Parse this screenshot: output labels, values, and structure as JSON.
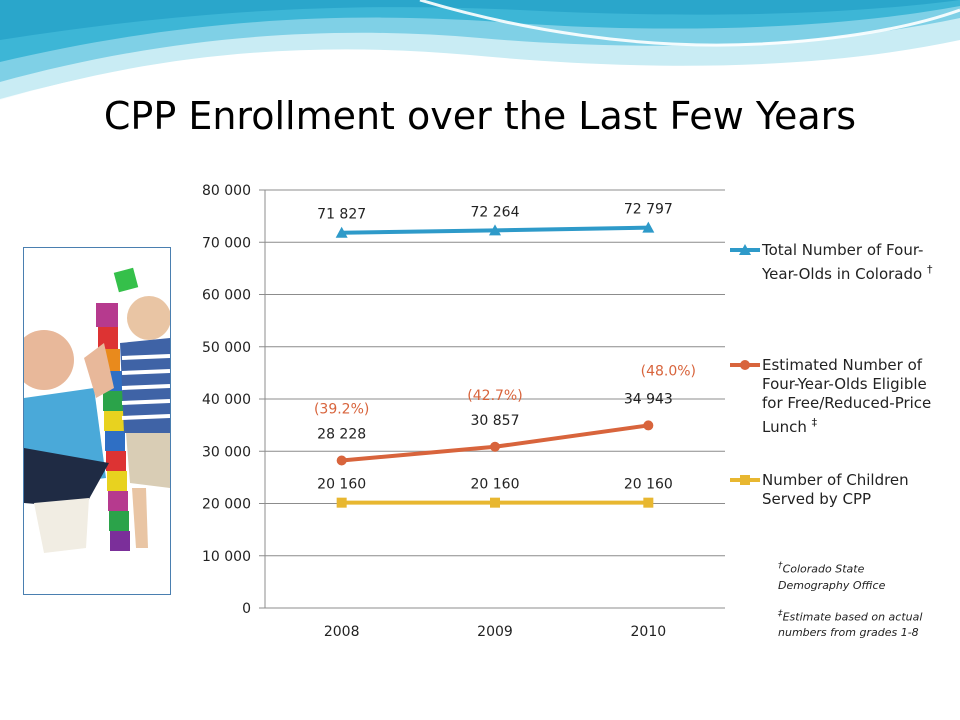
{
  "slide": {
    "title": "CPP Enrollment over the Last Few Years"
  },
  "colors": {
    "total": "#2e9ac9",
    "eligible": "#d8643c",
    "served": "#e8b730",
    "percent_label": "#d8643c",
    "wave_dark": "#3db6d6",
    "wave_light": "#c9ecf4"
  },
  "legend": [
    {
      "text": "Total Number of Four-Year-Olds in Colorado",
      "mark": "†",
      "series": "total"
    },
    {
      "text": "Estimated Number of Four-Year-Olds Eligible for Free/Reduced-Price Lunch",
      "mark": "‡",
      "series": "eligible"
    },
    {
      "text": "Number of Children Served by CPP",
      "mark": "",
      "series": "served"
    }
  ],
  "footnotes": [
    {
      "mark": "†",
      "text": "Colorado State Demography Office"
    },
    {
      "mark": "‡",
      "text": "Estimate based on actual numbers from grades 1-8"
    }
  ],
  "photo": {
    "description_icon": "children-stacking-blocks-photo"
  },
  "chart_data": {
    "type": "line",
    "categories": [
      "2008",
      "2009",
      "2010"
    ],
    "ylim": [
      0,
      80000
    ],
    "yticks": [
      0,
      10000,
      20000,
      30000,
      40000,
      50000,
      60000,
      70000,
      80000
    ],
    "ytick_labels": [
      "0",
      "10 000",
      "20 000",
      "30 000",
      "40 000",
      "50 000",
      "60 000",
      "70 000",
      "80 000"
    ],
    "grid": true,
    "legend_position": "right",
    "series": [
      {
        "key": "total",
        "name": "Total Number of Four-Year-Olds in Colorado",
        "marker": "triangle",
        "values": [
          71827,
          72264,
          72797
        ],
        "labels": [
          "71 827",
          "72 264",
          "72 797"
        ]
      },
      {
        "key": "eligible",
        "name": "Estimated Number of Four-Year-Olds Eligible for Free/Reduced-Price Lunch",
        "marker": "circle",
        "values": [
          28228,
          30857,
          34943
        ],
        "labels": [
          "28 228",
          "30 857",
          "34 943"
        ],
        "annotations": [
          "(39.2%)",
          "(42.7%)",
          "(48.0%)"
        ]
      },
      {
        "key": "served",
        "name": "Number of Children Served by CPP",
        "marker": "square",
        "values": [
          20160,
          20160,
          20160
        ],
        "labels": [
          "20 160",
          "20 160",
          "20 160"
        ]
      }
    ]
  }
}
